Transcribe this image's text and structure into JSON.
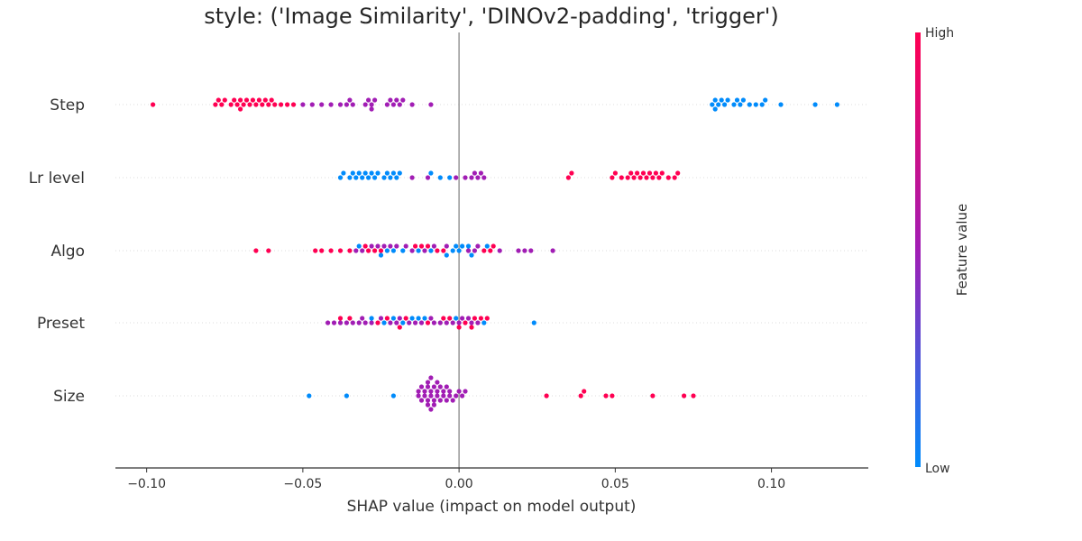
{
  "chart_data": {
    "type": "scatter",
    "subtype": "shap-beeswarm",
    "title": "style: ('Image Similarity', 'DINOv2-padding', 'trigger')",
    "xlabel": "SHAP value (impact on model output)",
    "xlim": [
      -0.11,
      0.131
    ],
    "xticks": [
      -0.1,
      -0.05,
      0.0,
      0.05,
      0.1
    ],
    "xtick_labels": [
      "−0.10",
      "−0.05",
      "0.00",
      "0.05",
      "0.10"
    ],
    "zero_line": 0.0,
    "gridlines": "horizontal dotted per feature",
    "colorbar": {
      "title": "Feature value",
      "high_label": "High",
      "low_label": "Low",
      "high_color": "#ff0052",
      "mid_color": "#a11db4",
      "low_color": "#008bfb"
    },
    "features": [
      {
        "name": "Step",
        "groups": [
          {
            "level": "high",
            "values": [
              -0.098,
              -0.078,
              -0.077,
              -0.076,
              -0.075,
              -0.073,
              -0.072,
              -0.071,
              -0.07,
              -0.07,
              -0.069,
              -0.068,
              -0.067,
              -0.066,
              -0.065,
              -0.064,
              -0.063,
              -0.062,
              -0.061,
              -0.06,
              -0.059,
              -0.057,
              -0.055,
              -0.053
            ]
          },
          {
            "level": "mid",
            "values": [
              -0.05,
              -0.047,
              -0.044,
              -0.041,
              -0.038,
              -0.036,
              -0.035,
              -0.034,
              -0.03,
              -0.029,
              -0.028,
              -0.028,
              -0.027,
              -0.023,
              -0.022,
              -0.021,
              -0.02,
              -0.019,
              -0.018,
              -0.015,
              -0.009
            ]
          },
          {
            "level": "low",
            "values": [
              0.081,
              0.082,
              0.082,
              0.083,
              0.084,
              0.085,
              0.086,
              0.088,
              0.089,
              0.09,
              0.091,
              0.093,
              0.095,
              0.097,
              0.098,
              0.103,
              0.114,
              0.121
            ]
          }
        ]
      },
      {
        "name": "Lr level",
        "groups": [
          {
            "level": "low",
            "values": [
              -0.038,
              -0.037,
              -0.035,
              -0.034,
              -0.033,
              -0.032,
              -0.031,
              -0.03,
              -0.029,
              -0.028,
              -0.027,
              -0.026,
              -0.024,
              -0.023,
              -0.022,
              -0.021,
              -0.02,
              -0.019,
              -0.009,
              -0.006,
              -0.003
            ]
          },
          {
            "level": "mid",
            "values": [
              -0.015,
              -0.01,
              -0.001,
              0.002,
              0.004,
              0.005,
              0.006,
              0.007,
              0.008
            ]
          },
          {
            "level": "high",
            "values": [
              0.035,
              0.036,
              0.049,
              0.05,
              0.052,
              0.054,
              0.055,
              0.056,
              0.057,
              0.058,
              0.059,
              0.06,
              0.061,
              0.062,
              0.063,
              0.064,
              0.065,
              0.067,
              0.069,
              0.07
            ]
          }
        ]
      },
      {
        "name": "Algo",
        "groups": [
          {
            "level": "high",
            "values": [
              -0.065,
              -0.061,
              -0.046,
              -0.044,
              -0.041,
              -0.038,
              -0.035,
              -0.03,
              -0.029,
              -0.027,
              -0.025,
              -0.014,
              -0.012,
              -0.01,
              -0.007,
              -0.005,
              0.008,
              0.01,
              0.011
            ]
          },
          {
            "level": "mid",
            "values": [
              -0.033,
              -0.031,
              -0.028,
              -0.026,
              -0.024,
              -0.022,
              -0.02,
              -0.017,
              -0.015,
              -0.011,
              -0.008,
              -0.004,
              0.003,
              0.005,
              0.006,
              0.013,
              0.019,
              0.021,
              0.023,
              0.03
            ]
          },
          {
            "level": "low",
            "values": [
              -0.032,
              -0.025,
              -0.023,
              -0.021,
              -0.018,
              -0.013,
              -0.009,
              -0.004,
              -0.002,
              -0.001,
              0.0,
              0.001,
              0.003,
              0.004,
              0.009
            ]
          }
        ]
      },
      {
        "name": "Preset",
        "groups": [
          {
            "level": "mid",
            "values": [
              -0.042,
              -0.04,
              -0.038,
              -0.036,
              -0.034,
              -0.032,
              -0.031,
              -0.03,
              -0.028,
              -0.025,
              -0.022,
              -0.02,
              -0.019,
              -0.016,
              -0.014,
              -0.012,
              -0.009,
              -0.008,
              -0.006,
              -0.004,
              -0.002,
              0.0,
              0.001,
              0.003,
              0.004,
              0.006
            ]
          },
          {
            "level": "high",
            "values": [
              -0.038,
              -0.035,
              -0.026,
              -0.023,
              -0.019,
              -0.017,
              -0.01,
              -0.005,
              -0.003,
              0.0,
              0.002,
              0.004,
              0.005,
              0.007,
              0.009
            ]
          },
          {
            "level": "low",
            "values": [
              -0.028,
              -0.024,
              -0.021,
              -0.018,
              -0.015,
              -0.013,
              -0.011,
              -0.001,
              0.008,
              0.024
            ]
          }
        ]
      },
      {
        "name": "Size",
        "groups": [
          {
            "level": "low",
            "values": [
              -0.048,
              -0.036,
              -0.021
            ]
          },
          {
            "level": "mid",
            "values": [
              -0.013,
              -0.013,
              -0.012,
              -0.012,
              -0.011,
              -0.011,
              -0.01,
              -0.01,
              -0.01,
              -0.01,
              -0.009,
              -0.009,
              -0.009,
              -0.009,
              -0.008,
              -0.008,
              -0.008,
              -0.007,
              -0.007,
              -0.007,
              -0.006,
              -0.006,
              -0.005,
              -0.005,
              -0.004,
              -0.004,
              -0.003,
              -0.003,
              -0.002,
              -0.001,
              0.0,
              0.001,
              0.002
            ]
          },
          {
            "level": "high",
            "values": [
              0.028,
              0.039,
              0.04,
              0.047,
              0.049,
              0.062,
              0.072,
              0.075
            ]
          }
        ]
      }
    ]
  }
}
